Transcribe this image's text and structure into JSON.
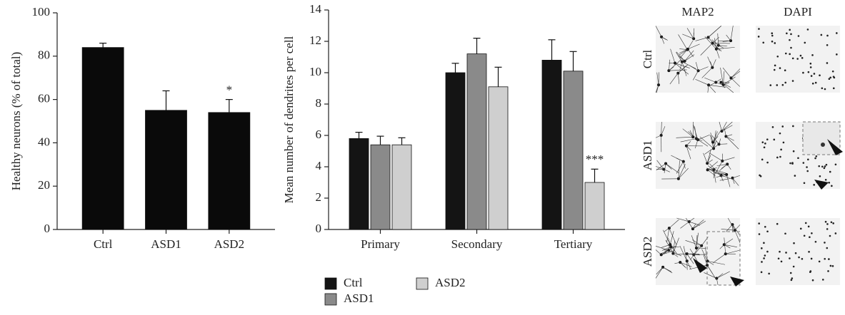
{
  "chart_data": [
    {
      "type": "bar",
      "ylabel": "Healthy neurons (% of total)",
      "categories": [
        "Ctrl",
        "ASD1",
        "ASD2"
      ],
      "values": [
        84,
        55,
        54
      ],
      "errors": [
        2,
        9,
        6
      ],
      "color": "#0a0a0a",
      "ylim": [
        0,
        100
      ],
      "yticks": [
        0,
        20,
        40,
        60,
        80,
        100
      ],
      "annotations": [
        {
          "text": "*",
          "category": "ASD2"
        }
      ]
    },
    {
      "type": "bar",
      "ylabel": "Mean number of dendrites per cell",
      "categories": [
        "Primary",
        "Secondary",
        "Tertiary"
      ],
      "series": [
        {
          "name": "Ctrl",
          "color": "#141414",
          "values": [
            5.8,
            10,
            10.8
          ],
          "errors": [
            0.4,
            0.6,
            1.3
          ]
        },
        {
          "name": "ASD1",
          "color": "#8a8a8a",
          "values": [
            5.4,
            11.2,
            10.1
          ],
          "errors": [
            0.55,
            1.0,
            1.25
          ]
        },
        {
          "name": "ASD2",
          "color": "#cfcfcf",
          "values": [
            5.4,
            9.1,
            3.0
          ],
          "errors": [
            0.45,
            1.25,
            0.85
          ]
        }
      ],
      "ylim": [
        0,
        14
      ],
      "yticks": [
        0,
        2,
        4,
        6,
        8,
        10,
        12,
        14
      ],
      "annotations": [
        {
          "text": "***",
          "category": "Tertiary",
          "series": "ASD2"
        }
      ]
    }
  ],
  "image_panel": {
    "columns": [
      "MAP2",
      "DAPI"
    ],
    "rows": [
      "Ctrl",
      "ASD1",
      "ASD2"
    ]
  }
}
